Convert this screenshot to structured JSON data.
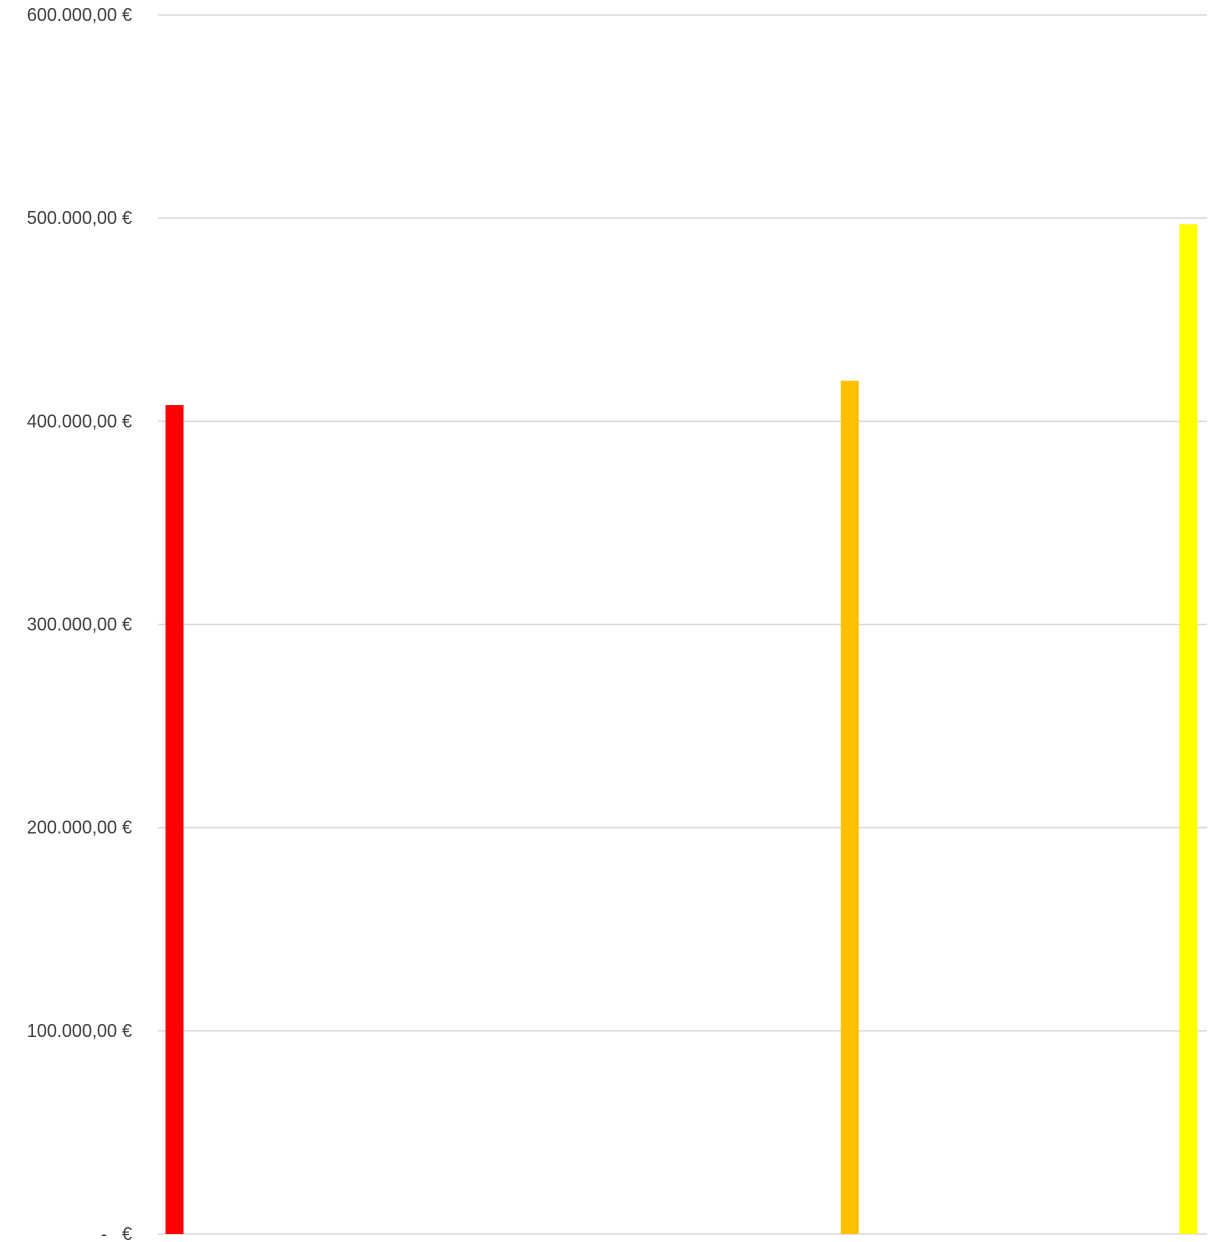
{
  "chart_data": {
    "type": "bar",
    "title": "",
    "xlabel": "",
    "ylabel": "",
    "x": [
      0,
      163.5,
      245.5
    ],
    "xlim": [
      -4,
      250
    ],
    "ylim": [
      0,
      600000
    ],
    "grid": true,
    "legend": "none",
    "yticks": [
      {
        "value": 0,
        "label": "-   €"
      },
      {
        "value": 100000,
        "label": "100.000,00 €"
      },
      {
        "value": 200000,
        "label": "200.000,00 €"
      },
      {
        "value": 300000,
        "label": "300.000,00 €"
      },
      {
        "value": 400000,
        "label": "400.000,00 €"
      },
      {
        "value": 500000,
        "label": "500.000,00 €"
      },
      {
        "value": 600000,
        "label": "600.000,00 €"
      }
    ],
    "values": [
      408000,
      420000,
      497000
    ],
    "colors": [
      "#ff0000",
      "#ffc000",
      "#ffff00"
    ]
  }
}
